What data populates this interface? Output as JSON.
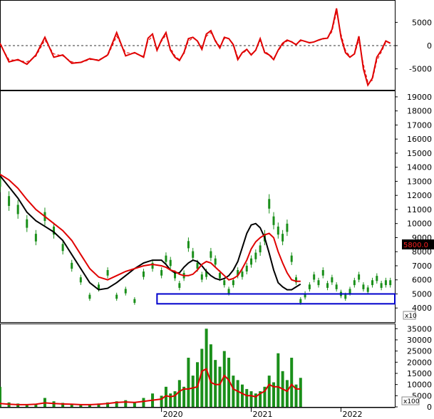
{
  "chart_data": [
    {
      "type": "line",
      "panel": "oscillator",
      "title": "",
      "y_ticks": [
        5000,
        0,
        -5000
      ],
      "ylim": [
        -9500,
        9500
      ],
      "zero_line": "dashed",
      "series": [
        {
          "color": "#e00000",
          "style": "solid",
          "x": [
            2018.2,
            2018.3,
            2018.4,
            2018.5,
            2018.6,
            2018.7,
            2018.8,
            2018.9,
            2019.0,
            2019.1,
            2019.2,
            2019.3,
            2019.4,
            2019.5,
            2019.6,
            2019.7,
            2019.8,
            2019.85,
            2019.9,
            2019.95,
            2020.0,
            2020.05,
            2020.1,
            2020.15,
            2020.2,
            2020.25,
            2020.3,
            2020.35,
            2020.4,
            2020.45,
            2020.5,
            2020.55,
            2020.6,
            2020.65,
            2020.7,
            2020.75,
            2020.8,
            2020.85,
            2020.9,
            2020.95,
            2021.0,
            2021.05,
            2021.1,
            2021.15,
            2021.2,
            2021.25,
            2021.3,
            2021.35,
            2021.4,
            2021.45,
            2021.5,
            2021.55,
            2021.6,
            2021.65,
            2021.7,
            2021.75,
            2021.8,
            2021.85,
            2021.9,
            2021.95,
            2022.0,
            2022.05,
            2022.1,
            2022.15,
            2022.2,
            2022.25,
            2022.3,
            2022.35,
            2022.4,
            2022.45,
            2022.5,
            2022.55
          ],
          "values": [
            500,
            -3500,
            -3000,
            -4000,
            -2000,
            1800,
            -2500,
            -2000,
            -3800,
            -3600,
            -2800,
            -3200,
            -2000,
            2800,
            -2200,
            -1500,
            -2500,
            1600,
            2500,
            -1000,
            1200,
            2800,
            -1000,
            -2500,
            -3200,
            -1500,
            1500,
            1800,
            1000,
            -800,
            2500,
            3200,
            1000,
            -500,
            1800,
            1500,
            200,
            -3000,
            -1500,
            -800,
            -2000,
            -1000,
            1500,
            -1500,
            -2000,
            -3000,
            -1000,
            500,
            1200,
            800,
            200,
            1200,
            900,
            600,
            800,
            1200,
            1500,
            1600,
            3500,
            8000,
            1800,
            -1500,
            -2500,
            -1800,
            2000,
            -5000,
            -8500,
            -7000,
            -2500,
            -1000,
            1000,
            500
          ]
        },
        {
          "color": "#e00000",
          "style": "dashed",
          "x": [
            2018.2,
            2018.3,
            2018.4,
            2018.5,
            2018.6,
            2018.7,
            2018.8,
            2018.9,
            2019.0,
            2019.1,
            2019.2,
            2019.3,
            2019.4,
            2019.5,
            2019.6,
            2019.7,
            2019.8,
            2019.85,
            2019.9,
            2019.95,
            2020.0,
            2020.05,
            2020.1,
            2020.15,
            2020.2,
            2020.25,
            2020.3,
            2020.35,
            2020.4,
            2020.45,
            2020.5,
            2020.55,
            2020.6,
            2020.65,
            2020.7,
            2020.75,
            2020.8,
            2020.85,
            2020.9,
            2020.95,
            2021.0,
            2021.05,
            2021.1,
            2021.15,
            2021.2,
            2021.25,
            2021.3,
            2021.35,
            2021.4,
            2021.45,
            2021.5,
            2021.55,
            2021.6,
            2021.65,
            2021.7,
            2021.75,
            2021.8,
            2021.85,
            2021.9,
            2021.95,
            2022.0,
            2022.05,
            2022.1,
            2022.15,
            2022.2,
            2022.25,
            2022.3,
            2022.35,
            2022.4,
            2022.45,
            2022.5,
            2022.55
          ],
          "values": [
            200,
            -3000,
            -3200,
            -3500,
            -2300,
            1200,
            -1800,
            -2200,
            -3500,
            -3700,
            -3000,
            -3000,
            -2200,
            2000,
            -1500,
            -1700,
            -2300,
            1000,
            2000,
            -600,
            900,
            2300,
            -500,
            -2200,
            -3000,
            -1800,
            1000,
            1600,
            1100,
            -500,
            2000,
            2800,
            1200,
            -200,
            1500,
            1500,
            400,
            -2500,
            -1700,
            -1000,
            -1800,
            -1100,
            1100,
            -1200,
            -1900,
            -2700,
            -1200,
            200,
            1000,
            900,
            300,
            1000,
            900,
            700,
            800,
            1100,
            1400,
            1600,
            3000,
            7200,
            2500,
            -1000,
            -2300,
            -2000,
            1200,
            -4000,
            -7800,
            -7500,
            -3200,
            -1400,
            700,
            600
          ]
        }
      ]
    },
    {
      "type": "line",
      "panel": "price",
      "title": "",
      "y_ticks": [
        19000,
        18000,
        17000,
        16000,
        15000,
        14000,
        13000,
        12000,
        11000,
        10000,
        9000,
        8000,
        7000,
        6000,
        5000,
        4000
      ],
      "ylim": [
        3000,
        19400
      ],
      "y_multiplier": "x10",
      "last_price_label": "5800.0",
      "last_price": 5800,
      "support_box": {
        "x_range": [
          2019.95,
          2022.6
        ],
        "y_range": [
          4300,
          5000
        ],
        "color": "#0000cc"
      },
      "candles": {
        "color": "#1a8f1a",
        "x": [
          2018.2,
          2018.3,
          2018.4,
          2018.5,
          2018.6,
          2018.7,
          2018.8,
          2018.9,
          2019.0,
          2019.1,
          2019.2,
          2019.3,
          2019.4,
          2019.5,
          2019.6,
          2019.7,
          2019.8,
          2019.9,
          2020.0,
          2020.05,
          2020.1,
          2020.15,
          2020.2,
          2020.25,
          2020.3,
          2020.35,
          2020.4,
          2020.45,
          2020.5,
          2020.55,
          2020.6,
          2020.65,
          2020.7,
          2020.75,
          2020.8,
          2020.85,
          2020.9,
          2020.95,
          2021.0,
          2021.05,
          2021.1,
          2021.15,
          2021.2,
          2021.25,
          2021.3,
          2021.35,
          2021.4,
          2021.45,
          2021.5,
          2021.55,
          2021.6,
          2021.65,
          2021.7,
          2021.75,
          2021.8,
          2021.85,
          2021.9,
          2021.95,
          2022.0,
          2022.05,
          2022.1,
          2022.15,
          2022.2,
          2022.25,
          2022.3,
          2022.35,
          2022.4,
          2022.45,
          2022.5,
          2022.55
        ],
        "values": [
          13000,
          11600,
          11000,
          10000,
          9000,
          10500,
          9500,
          8300,
          7000,
          6000,
          4800,
          5500,
          6500,
          4800,
          5200,
          4500,
          6400,
          7000,
          6500,
          7500,
          7200,
          6300,
          5600,
          6300,
          8500,
          7800,
          7000,
          6200,
          6400,
          7800,
          7300,
          6300,
          5800,
          5200,
          5800,
          6500,
          6400,
          6800,
          7300,
          7700,
          8200,
          9000,
          11400,
          10200,
          9500,
          9000,
          9700,
          7500,
          6000,
          4500,
          4900,
          5500,
          6200,
          5800,
          6500,
          5600,
          6000,
          5500,
          5000,
          4800,
          5200,
          5800,
          6200,
          5500,
          5300,
          5800,
          6100,
          5600,
          5800,
          5800
        ]
      },
      "series": [
        {
          "color": "#000000",
          "style": "solid",
          "x": [
            2018.2,
            2018.3,
            2018.4,
            2018.5,
            2018.6,
            2018.7,
            2018.8,
            2018.9,
            2019.0,
            2019.1,
            2019.2,
            2019.3,
            2019.4,
            2019.5,
            2019.6,
            2019.7,
            2019.8,
            2019.9,
            2020.0,
            2020.05,
            2020.1,
            2020.15,
            2020.2,
            2020.25,
            2020.3,
            2020.35,
            2020.4,
            2020.45,
            2020.5,
            2020.55,
            2020.6,
            2020.65,
            2020.7,
            2020.75,
            2020.8,
            2020.85,
            2020.9,
            2020.95,
            2021.0,
            2021.05,
            2021.1,
            2021.15,
            2021.2,
            2021.25,
            2021.3,
            2021.35,
            2021.4,
            2021.45,
            2021.5,
            2021.55
          ],
          "values": [
            13400,
            12600,
            11800,
            10800,
            10200,
            9800,
            9400,
            8800,
            7800,
            6800,
            5800,
            5300,
            5400,
            5800,
            6300,
            6800,
            7200,
            7400,
            7400,
            7100,
            6700,
            6500,
            6500,
            6900,
            7200,
            7400,
            7300,
            7000,
            6600,
            6300,
            6100,
            6000,
            6100,
            6300,
            6700,
            7300,
            8300,
            9300,
            9900,
            10000,
            9700,
            9000,
            7900,
            6700,
            5800,
            5500,
            5300,
            5300,
            5500,
            5700
          ]
        },
        {
          "color": "#e00000",
          "style": "solid",
          "x": [
            2018.2,
            2018.3,
            2018.4,
            2018.5,
            2018.6,
            2018.7,
            2018.8,
            2018.9,
            2019.0,
            2019.1,
            2019.2,
            2019.3,
            2019.4,
            2019.5,
            2019.6,
            2019.7,
            2019.8,
            2019.9,
            2020.0,
            2020.05,
            2020.1,
            2020.15,
            2020.2,
            2020.25,
            2020.3,
            2020.35,
            2020.4,
            2020.45,
            2020.5,
            2020.55,
            2020.6,
            2020.65,
            2020.7,
            2020.75,
            2020.8,
            2020.85,
            2020.9,
            2020.95,
            2021.0,
            2021.05,
            2021.1,
            2021.15,
            2021.2,
            2021.25,
            2021.3,
            2021.35,
            2021.4,
            2021.45,
            2021.5,
            2021.55
          ],
          "values": [
            13500,
            13100,
            12500,
            11700,
            11000,
            10500,
            10000,
            9500,
            8800,
            7800,
            6800,
            6200,
            6000,
            6300,
            6600,
            6800,
            7000,
            7100,
            7000,
            6900,
            6700,
            6600,
            6400,
            6300,
            6300,
            6400,
            6700,
            7100,
            7300,
            7200,
            6900,
            6600,
            6300,
            6000,
            6100,
            6300,
            6800,
            7400,
            8200,
            8700,
            9000,
            9200,
            9300,
            9000,
            8000,
            7200,
            6500,
            6000,
            5900,
            5900
          ]
        }
      ]
    },
    {
      "type": "bar",
      "panel": "volume",
      "title": "",
      "y_ticks": [
        35000,
        30000,
        25000,
        20000,
        15000,
        10000,
        5000,
        0
      ],
      "ylim": [
        0,
        37000
      ],
      "y_multiplier": "x100",
      "x_tick_labels": [
        "2020",
        "2021",
        "2022"
      ],
      "bar_color": "#1a8f1a",
      "bars": {
        "x": [
          2018.2,
          2018.3,
          2018.4,
          2018.5,
          2018.6,
          2018.7,
          2018.8,
          2018.9,
          2019.0,
          2019.1,
          2019.2,
          2019.3,
          2019.4,
          2019.5,
          2019.6,
          2019.7,
          2019.8,
          2019.9,
          2020.0,
          2020.05,
          2020.1,
          2020.15,
          2020.2,
          2020.25,
          2020.3,
          2020.35,
          2020.4,
          2020.45,
          2020.5,
          2020.55,
          2020.6,
          2020.65,
          2020.7,
          2020.75,
          2020.8,
          2020.85,
          2020.9,
          2020.95,
          2021.0,
          2021.05,
          2021.1,
          2021.15,
          2021.2,
          2021.25,
          2021.3,
          2021.35,
          2021.4,
          2021.45,
          2021.5,
          2021.55
        ],
        "values": [
          9000,
          2000,
          1500,
          1000,
          1200,
          4000,
          2500,
          1800,
          1200,
          1000,
          1200,
          1500,
          2000,
          2500,
          3000,
          2000,
          4000,
          6000,
          5000,
          9000,
          6000,
          7000,
          12000,
          9000,
          22000,
          14000,
          20000,
          26000,
          35000,
          28000,
          21000,
          18000,
          25000,
          22000,
          14000,
          12000,
          10000,
          8000,
          7000,
          6000,
          7000,
          9000,
          14000,
          11000,
          24000,
          16000,
          12000,
          22000,
          10000,
          13000
        ]
      },
      "series": [
        {
          "color": "#e00000",
          "style": "solid",
          "x": [
            2018.2,
            2018.3,
            2018.4,
            2018.5,
            2018.6,
            2018.7,
            2018.8,
            2018.9,
            2019.0,
            2019.1,
            2019.2,
            2019.3,
            2019.4,
            2019.5,
            2019.6,
            2019.7,
            2019.8,
            2019.9,
            2020.0,
            2020.05,
            2020.1,
            2020.15,
            2020.2,
            2020.25,
            2020.3,
            2020.35,
            2020.4,
            2020.45,
            2020.5,
            2020.55,
            2020.6,
            2020.65,
            2020.7,
            2020.75,
            2020.8,
            2020.85,
            2020.9,
            2020.95,
            2021.0,
            2021.05,
            2021.1,
            2021.15,
            2021.2,
            2021.25,
            2021.3,
            2021.35,
            2021.4,
            2021.45,
            2021.5,
            2021.55
          ],
          "values": [
            1500,
            1200,
            1000,
            1000,
            1200,
            1800,
            1500,
            1300,
            1200,
            1000,
            1000,
            1200,
            1500,
            2000,
            2200,
            2000,
            2500,
            3000,
            3500,
            5000,
            4500,
            5000,
            7000,
            8000,
            8000,
            8500,
            9000,
            16000,
            17000,
            11000,
            10000,
            10000,
            14000,
            12000,
            8000,
            7000,
            6000,
            5000,
            5000,
            4500,
            6000,
            7000,
            10000,
            9000,
            9000,
            8000,
            7000,
            10000,
            8000,
            8000
          ]
        }
      ]
    }
  ]
}
